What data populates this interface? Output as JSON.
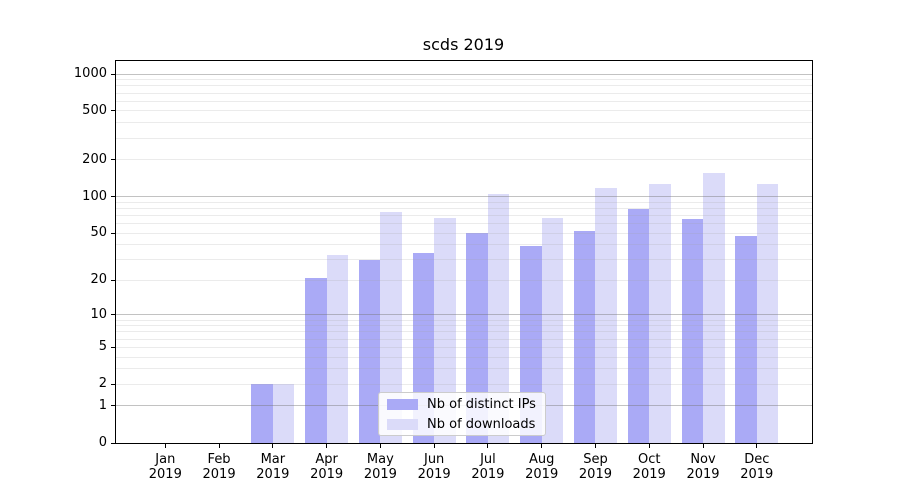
{
  "figure": {
    "title": "scds 2019",
    "background": "#ffffff"
  },
  "legend": {
    "items": [
      {
        "label": "Nb of distinct IPs",
        "color": "#aaaaf6"
      },
      {
        "label": "Nb of downloads",
        "color": "#dbdbf9"
      }
    ]
  },
  "axes": {
    "y_tick_labels": [
      "1000",
      "500",
      "200",
      "100",
      "50",
      "20",
      "10",
      "5",
      "2",
      "1",
      "0"
    ],
    "x_tick_labels": [
      {
        "month": "Jan",
        "year": "2019"
      },
      {
        "month": "Feb",
        "year": "2019"
      },
      {
        "month": "Mar",
        "year": "2019"
      },
      {
        "month": "Apr",
        "year": "2019"
      },
      {
        "month": "May",
        "year": "2019"
      },
      {
        "month": "Jun",
        "year": "2019"
      },
      {
        "month": "Jul",
        "year": "2019"
      },
      {
        "month": "Aug",
        "year": "2019"
      },
      {
        "month": "Sep",
        "year": "2019"
      },
      {
        "month": "Oct",
        "year": "2019"
      },
      {
        "month": "Nov",
        "year": "2019"
      },
      {
        "month": "Dec",
        "year": "2019"
      }
    ]
  },
  "chart_data": {
    "type": "bar",
    "title": "scds 2019",
    "categories": [
      "Jan 2019",
      "Feb 2019",
      "Mar 2019",
      "Apr 2019",
      "May 2019",
      "Jun 2019",
      "Jul 2019",
      "Aug 2019",
      "Sep 2019",
      "Oct 2019",
      "Nov 2019",
      "Dec 2019"
    ],
    "series": [
      {
        "name": "Nb of distinct IPs",
        "color": "#aaaaf6",
        "values": [
          0,
          0,
          2,
          21,
          30,
          34,
          50,
          39,
          52,
          79,
          65,
          47
        ]
      },
      {
        "name": "Nb of downloads",
        "color": "#dbdbf9",
        "values": [
          0,
          0,
          2,
          33,
          75,
          67,
          105,
          67,
          118,
          127,
          155,
          127
        ]
      }
    ],
    "xlabel": "",
    "ylabel": "",
    "yscale": "log1p",
    "y_ticks": [
      0,
      1,
      2,
      5,
      10,
      20,
      50,
      100,
      200,
      500,
      1000
    ],
    "y_minor_gridlines": [
      2,
      3,
      4,
      5,
      6,
      7,
      8,
      9,
      20,
      30,
      40,
      50,
      60,
      70,
      80,
      90,
      200,
      300,
      400,
      500,
      600,
      700,
      800,
      900
    ],
    "y_major_gridlines": [
      1,
      10,
      100,
      1000
    ],
    "ylim": [
      0,
      1300
    ],
    "grid": true,
    "legend_position": "lower center",
    "colors": {
      "major_grid": "rgba(120,120,120,0.45)",
      "minor_grid": "rgba(165,165,165,0.22)",
      "frame": "#000000",
      "text": "#000000"
    }
  }
}
